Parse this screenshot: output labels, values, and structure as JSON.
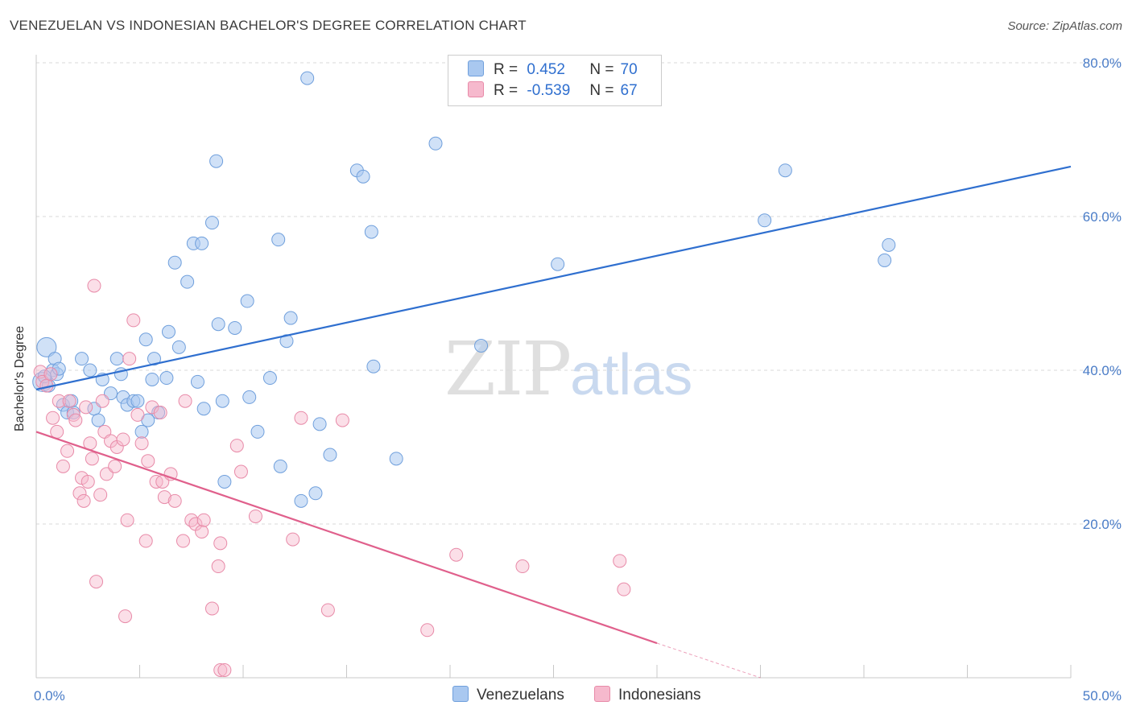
{
  "header": {
    "title": "VENEZUELAN VS INDONESIAN BACHELOR'S DEGREE CORRELATION CHART",
    "source": "Source: ZipAtlas.com"
  },
  "watermark": {
    "zip": "ZIP",
    "atlas": "atlas"
  },
  "legend": {
    "rows": [
      {
        "r_label": "R =",
        "r_value": "0.452",
        "n_label": "N =",
        "n_value": "70",
        "color": "#a9c8f0"
      },
      {
        "r_label": "R =",
        "r_value": "-0.539",
        "n_label": "N =",
        "n_value": "67",
        "color": "#f6b9cd"
      }
    ]
  },
  "bottom_legend": {
    "venezuelans": "Venezuelans",
    "indonesians": "Indonesians"
  },
  "colors": {
    "venezuelan_fill": "#a9c8f0",
    "venezuelan_stroke": "#6f9fdc",
    "venezuelan_line": "#2f6fcf",
    "indonesian_fill": "#f6b9cd",
    "indonesian_stroke": "#e88aa8",
    "indonesian_line": "#e0608c",
    "grid": "#d8d8d8",
    "tick_text": "#4a7cc7"
  },
  "chart_data": {
    "type": "scatter",
    "title": "VENEZUELAN VS INDONESIAN BACHELOR'S DEGREE CORRELATION CHART",
    "xlabel": "",
    "ylabel": "Bachelor's Degree",
    "xlim": [
      0,
      50
    ],
    "ylim": [
      0,
      80
    ],
    "x_tick_labels": [
      "0.0%",
      "50.0%"
    ],
    "y_ticks": [
      20,
      40,
      60,
      80
    ],
    "y_tick_labels": [
      "20.0%",
      "40.0%",
      "60.0%",
      "80.0%"
    ],
    "grid": true,
    "legend_position": "top-center",
    "series": [
      {
        "name": "Venezuelans",
        "r": 0.452,
        "n": 70,
        "trend": {
          "x": [
            0,
            50
          ],
          "y": [
            37.5,
            66.5
          ]
        },
        "points": [
          [
            0.3,
            38.5
          ],
          [
            0.5,
            43.0
          ],
          [
            0.6,
            38.0
          ],
          [
            0.8,
            40.0
          ],
          [
            0.9,
            41.5
          ],
          [
            1.0,
            39.5
          ],
          [
            1.3,
            35.5
          ],
          [
            1.5,
            34.5
          ],
          [
            1.7,
            36.0
          ],
          [
            1.8,
            34.5
          ],
          [
            2.2,
            41.5
          ],
          [
            2.6,
            40.0
          ],
          [
            2.8,
            35.0
          ],
          [
            3.0,
            33.5
          ],
          [
            3.2,
            38.8
          ],
          [
            3.6,
            37.0
          ],
          [
            3.9,
            41.5
          ],
          [
            4.1,
            39.5
          ],
          [
            4.2,
            36.5
          ],
          [
            4.4,
            35.5
          ],
          [
            4.7,
            36.0
          ],
          [
            4.9,
            36.0
          ],
          [
            5.1,
            32.0
          ],
          [
            5.3,
            44.0
          ],
          [
            5.4,
            33.5
          ],
          [
            5.6,
            38.8
          ],
          [
            5.7,
            41.5
          ],
          [
            5.9,
            34.5
          ],
          [
            6.3,
            39.0
          ],
          [
            6.4,
            45.0
          ],
          [
            6.7,
            54.0
          ],
          [
            6.9,
            43.0
          ],
          [
            7.3,
            51.5
          ],
          [
            7.6,
            56.5
          ],
          [
            7.8,
            38.5
          ],
          [
            8.0,
            56.5
          ],
          [
            8.1,
            35.0
          ],
          [
            8.5,
            59.2
          ],
          [
            8.7,
            67.2
          ],
          [
            8.8,
            46.0
          ],
          [
            9.0,
            36.0
          ],
          [
            9.1,
            25.5
          ],
          [
            9.6,
            45.5
          ],
          [
            10.2,
            49.0
          ],
          [
            10.3,
            36.5
          ],
          [
            10.7,
            32.0
          ],
          [
            11.3,
            39.0
          ],
          [
            11.7,
            57.0
          ],
          [
            11.8,
            27.5
          ],
          [
            12.1,
            43.8
          ],
          [
            12.3,
            46.8
          ],
          [
            12.8,
            23.0
          ],
          [
            13.1,
            78.0
          ],
          [
            13.5,
            24.0
          ],
          [
            13.7,
            33.0
          ],
          [
            14.2,
            29.0
          ],
          [
            15.5,
            66.0
          ],
          [
            15.8,
            65.2
          ],
          [
            16.2,
            58.0
          ],
          [
            16.3,
            40.5
          ],
          [
            17.4,
            28.5
          ],
          [
            19.3,
            69.5
          ],
          [
            21.5,
            43.2
          ],
          [
            25.2,
            53.8
          ],
          [
            35.2,
            59.5
          ],
          [
            36.2,
            66.0
          ],
          [
            41.0,
            54.3
          ],
          [
            41.2,
            56.3
          ],
          [
            0.4,
            39.2
          ],
          [
            1.1,
            40.2
          ]
        ]
      },
      {
        "name": "Indonesians",
        "r": -0.539,
        "n": 67,
        "trend": {
          "x": [
            0,
            30
          ],
          "y": [
            32.0,
            4.5
          ]
        },
        "trend_dashed": {
          "x": [
            30,
            35
          ],
          "y": [
            4.5,
            0.0
          ]
        },
        "points": [
          [
            0.2,
            39.8
          ],
          [
            0.3,
            38.5
          ],
          [
            0.5,
            38.0
          ],
          [
            0.7,
            39.5
          ],
          [
            0.8,
            33.8
          ],
          [
            1.0,
            32.0
          ],
          [
            1.1,
            36.0
          ],
          [
            1.3,
            27.5
          ],
          [
            1.5,
            29.5
          ],
          [
            1.6,
            36.0
          ],
          [
            1.8,
            34.2
          ],
          [
            1.9,
            33.5
          ],
          [
            2.1,
            24.0
          ],
          [
            2.2,
            26.0
          ],
          [
            2.3,
            23.0
          ],
          [
            2.4,
            35.2
          ],
          [
            2.5,
            25.5
          ],
          [
            2.6,
            30.5
          ],
          [
            2.7,
            28.5
          ],
          [
            2.8,
            51.0
          ],
          [
            2.9,
            12.5
          ],
          [
            3.1,
            23.8
          ],
          [
            3.2,
            36.0
          ],
          [
            3.3,
            32.0
          ],
          [
            3.4,
            26.5
          ],
          [
            3.6,
            30.8
          ],
          [
            3.8,
            27.5
          ],
          [
            3.9,
            30.0
          ],
          [
            4.2,
            31.0
          ],
          [
            4.3,
            8.0
          ],
          [
            4.4,
            20.5
          ],
          [
            4.5,
            41.5
          ],
          [
            4.7,
            46.5
          ],
          [
            4.9,
            34.2
          ],
          [
            5.1,
            30.5
          ],
          [
            5.3,
            17.8
          ],
          [
            5.4,
            28.2
          ],
          [
            5.6,
            35.2
          ],
          [
            5.8,
            25.5
          ],
          [
            6.0,
            34.5
          ],
          [
            6.1,
            25.5
          ],
          [
            6.2,
            23.5
          ],
          [
            6.5,
            26.5
          ],
          [
            6.7,
            23.0
          ],
          [
            7.1,
            17.8
          ],
          [
            7.2,
            36.0
          ],
          [
            7.5,
            20.5
          ],
          [
            7.7,
            20.0
          ],
          [
            8.0,
            19.0
          ],
          [
            8.1,
            20.5
          ],
          [
            8.5,
            9.0
          ],
          [
            8.8,
            14.5
          ],
          [
            8.9,
            17.5
          ],
          [
            8.9,
            1.0
          ],
          [
            9.1,
            1.0
          ],
          [
            9.7,
            30.2
          ],
          [
            9.9,
            26.8
          ],
          [
            10.6,
            21.0
          ],
          [
            12.4,
            18.0
          ],
          [
            12.8,
            33.8
          ],
          [
            14.1,
            8.8
          ],
          [
            14.8,
            33.5
          ],
          [
            18.9,
            6.2
          ],
          [
            20.3,
            16.0
          ],
          [
            23.5,
            14.5
          ],
          [
            28.2,
            15.2
          ],
          [
            28.4,
            11.5
          ]
        ]
      }
    ]
  }
}
